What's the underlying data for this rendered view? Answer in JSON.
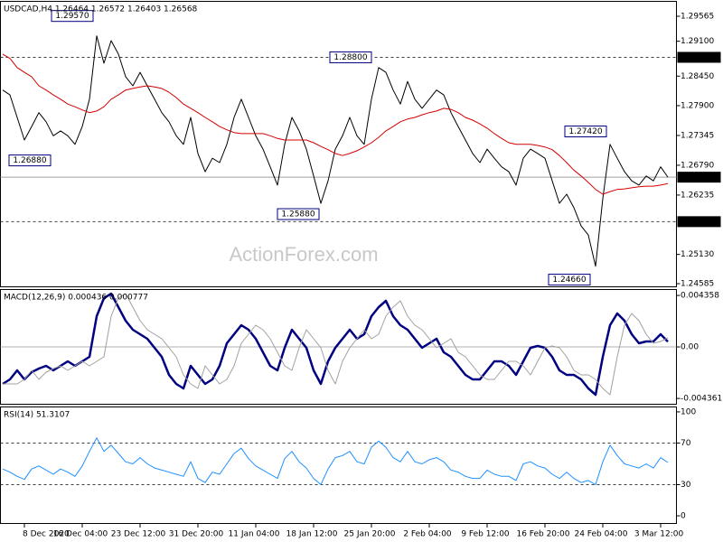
{
  "chart_data": [
    {
      "type": "line",
      "title": "USDCAD,H4 1.26464 1.26572 1.26403 1.26568",
      "watermark": "ActionForex.com",
      "ylim": [
        1.24518,
        1.29834
      ],
      "yticks": [
        1.29565,
        {
          "value": 1.291,
          "label": "1.29100"
        },
        {
          "value": 1.2845,
          "label": "1.28450"
        },
        {
          "value": 1.279,
          "label": "1.27900"
        },
        1.27345,
        {
          "value": 1.2679,
          "label": "1.26790"
        },
        1.26235,
        {
          "value": 1.2513,
          "label": "1.25130"
        },
        1.24585
      ],
      "levels": [
        {
          "value": 1.288,
          "label": "1.28800"
        },
        {
          "value": 1.2574,
          "label": "1.25740"
        }
      ],
      "last_price": 1.26568,
      "annotations": [
        {
          "value": 1.2957,
          "label": "1.29570"
        },
        {
          "value": 1.2742,
          "label": "1.27420"
        },
        {
          "value": 1.2688,
          "label": "1.26880"
        },
        {
          "value": 1.2588,
          "label": "1.25880"
        },
        {
          "value": 1.2466,
          "label": "1.24660"
        }
      ],
      "series": [
        {
          "color": "#000000",
          "values": [
            1.2819,
            1.281,
            1.2768,
            1.2726,
            1.2751,
            1.2777,
            1.276,
            1.2734,
            1.2743,
            1.2734,
            1.2718,
            1.2751,
            1.2802,
            1.292,
            1.2869,
            1.2911,
            1.2886,
            1.2844,
            1.2827,
            1.2852,
            1.2827,
            1.2802,
            1.2777,
            1.276,
            1.2734,
            1.2718,
            1.2768,
            1.2701,
            1.2667,
            1.2692,
            1.2684,
            1.2718,
            1.2768,
            1.2802,
            1.2768,
            1.2734,
            1.2709,
            1.2676,
            1.2642,
            1.2718,
            1.2768,
            1.2743,
            1.2709,
            1.2659,
            1.2608,
            1.265,
            1.2709,
            1.2734,
            1.2768,
            1.2734,
            1.2718,
            1.2802,
            1.2861,
            1.2852,
            1.2819,
            1.2793,
            1.2835,
            1.2802,
            1.2785,
            1.2802,
            1.2819,
            1.281,
            1.2777,
            1.2751,
            1.2726,
            1.2701,
            1.2684,
            1.2709,
            1.2692,
            1.2676,
            1.2667,
            1.2642,
            1.2692,
            1.2709,
            1.2701,
            1.2692,
            1.265,
            1.2608,
            1.2625,
            1.26,
            1.2566,
            1.2549,
            1.2491,
            1.2617,
            1.2718,
            1.2692,
            1.2667,
            1.265,
            1.2642,
            1.2659,
            1.265,
            1.2676,
            1.26568
          ]
        },
        {
          "color": "#d40000",
          "values": [
            1.2886,
            1.2878,
            1.2861,
            1.2852,
            1.2844,
            1.2827,
            1.2819,
            1.281,
            1.2802,
            1.2793,
            1.2788,
            1.2782,
            1.2777,
            1.278,
            1.2788,
            1.2802,
            1.281,
            1.2819,
            1.2822,
            1.2825,
            1.2827,
            1.2825,
            1.2822,
            1.2815,
            1.2805,
            1.2793,
            1.2785,
            1.2777,
            1.2768,
            1.276,
            1.2751,
            1.2745,
            1.274,
            1.2738,
            1.2738,
            1.2738,
            1.2738,
            1.2734,
            1.2729,
            1.2726,
            1.2726,
            1.2726,
            1.2726,
            1.2721,
            1.2714,
            1.2708,
            1.2701,
            1.2697,
            1.2701,
            1.2706,
            1.2713,
            1.2721,
            1.2731,
            1.2743,
            1.2751,
            1.276,
            1.2765,
            1.2768,
            1.2773,
            1.2777,
            1.278,
            1.2785,
            1.2783,
            1.2777,
            1.2768,
            1.2763,
            1.2756,
            1.2748,
            1.2738,
            1.2729,
            1.2721,
            1.2718,
            1.2718,
            1.2718,
            1.2716,
            1.2713,
            1.2708,
            1.2697,
            1.2684,
            1.267,
            1.2659,
            1.2647,
            1.2634,
            1.2625,
            1.263,
            1.2634,
            1.2635,
            1.2637,
            1.2639,
            1.264,
            1.264,
            1.2642,
            1.2645
          ]
        }
      ]
    },
    {
      "type": "line",
      "title": "MACD(12,26,9) 0.000436 0.000777",
      "ylim": [
        -0.00489,
        0.00482
      ],
      "yticks": [
        0.004358,
        {
          "value": 0,
          "label": "0.00"
        },
        -0.004361
      ],
      "levels": [
        0
      ],
      "series": [
        {
          "color": "#000080",
          "values": [
            -0.003134,
            -0.002752,
            -0.001988,
            -0.002752,
            -0.002141,
            -0.001835,
            -0.001605,
            -0.001988,
            -0.001605,
            -0.001223,
            -0.001605,
            -0.001223,
            -0.000841,
            0.002599,
            0.004128,
            0.00451,
            0.003364,
            0.002217,
            0.001453,
            0.00107,
            0.000688,
            -7.6e-05,
            -0.000841,
            -0.00237,
            -0.003134,
            -0.003517,
            -0.001605,
            -0.00237,
            -0.003134,
            -0.002752,
            -0.001605,
            0.000306,
            0.00107,
            0.001835,
            0.001453,
            0.000688,
            -0.000459,
            -0.001605,
            -0.001988,
            -7.6e-05,
            0.001453,
            0.000688,
            -7.6e-05,
            -0.001988,
            -0.003134,
            -0.001223,
            -7.6e-05,
            0.000688,
            0.001453,
            0.000688,
            0.00107,
            0.002599,
            0.003364,
            0.003899,
            0.002599,
            0.001835,
            0.001453,
            0.000688,
            -7.6e-05,
            0.000306,
            0.000688,
            -0.000459,
            -0.000841,
            -0.001605,
            -0.00237,
            -0.002752,
            -0.002752,
            -0.001988,
            -0.001223,
            -0.001223,
            -0.001605,
            -0.00237,
            -0.001223,
            -7.6e-05,
            7.6e-05,
            -7.6e-05,
            -0.000841,
            -0.001988,
            -0.00237,
            -0.00237,
            -0.002752,
            -0.003517,
            -0.004052,
            -0.000841,
            0.001835,
            0.002829,
            0.002217,
            0.00107,
            0.000306,
            0.000459,
            0.000459,
            0.00107,
            0.000436
          ]
        },
        {
          "color": "#a0a0a0",
          "values": [
            -0.003134,
            -0.003134,
            -0.003134,
            -0.002752,
            -0.001988,
            -0.002752,
            -0.002141,
            -0.001835,
            -0.001605,
            -0.001988,
            -0.001605,
            -0.001223,
            -0.001605,
            -0.001223,
            -0.000841,
            0.002599,
            0.004128,
            0.00451,
            0.003364,
            0.002217,
            0.001453,
            0.00107,
            0.000688,
            -7.6e-05,
            -0.000841,
            -0.00237,
            -0.003134,
            -0.003517,
            -0.001605,
            -0.00237,
            -0.003134,
            -0.002752,
            -0.001605,
            0.000306,
            0.00107,
            0.001835,
            0.001453,
            0.000688,
            -0.000459,
            -0.001605,
            -0.001988,
            -7.6e-05,
            0.001453,
            0.000688,
            -7.6e-05,
            -0.001988,
            -0.003134,
            -0.001223,
            -7.6e-05,
            0.000688,
            0.001453,
            0.000688,
            0.00107,
            0.002599,
            0.003364,
            0.003899,
            0.002599,
            0.001835,
            0.001453,
            0.000688,
            -7.6e-05,
            0.000306,
            0.000688,
            -0.000459,
            -0.000841,
            -0.001605,
            -0.00237,
            -0.002752,
            -0.002752,
            -0.001988,
            -0.001223,
            -0.001223,
            -0.001605,
            -0.00237,
            -0.001223,
            -7.6e-05,
            7.6e-05,
            -7.6e-05,
            -0.000841,
            -0.001988,
            -0.00237,
            -0.00237,
            -0.002752,
            -0.003517,
            -0.004052,
            -0.000841,
            0.001835,
            0.002829,
            0.002217,
            0.00107,
            0.000306,
            0.000459,
            0.000777
          ]
        }
      ]
    },
    {
      "type": "line",
      "title": "RSI(14) 51.3107",
      "ylim": [
        -7.8,
        104.3
      ],
      "yticks": [
        100,
        70,
        30,
        0
      ],
      "levels": [
        70,
        30
      ],
      "categories": [
        null,
        null,
        null,
        "8 Dec 2020",
        null,
        null,
        null,
        null,
        null,
        null,
        null,
        "16 Dec 04:00",
        null,
        null,
        null,
        null,
        null,
        null,
        null,
        "23 Dec 12:00",
        null,
        null,
        null,
        null,
        null,
        null,
        null,
        "31 Dec 20:00",
        null,
        null,
        null,
        null,
        null,
        null,
        null,
        "11 Jan 04:00",
        null,
        null,
        null,
        null,
        null,
        null,
        null,
        "18 Jan 12:00",
        null,
        null,
        null,
        null,
        null,
        null,
        null,
        "25 Jan 20:00",
        null,
        null,
        null,
        null,
        null,
        null,
        null,
        "2 Feb 04:00",
        null,
        null,
        null,
        null,
        null,
        null,
        null,
        "9 Feb 12:00",
        null,
        null,
        null,
        null,
        null,
        null,
        null,
        "16 Feb 20:00",
        null,
        null,
        null,
        null,
        null,
        null,
        null,
        "24 Feb 04:00",
        null,
        null,
        null,
        null,
        null,
        null,
        null,
        "3 Mar 12:00",
        null
      ],
      "series": [
        {
          "color": "#1e90ff",
          "values": [
            45,
            42,
            38,
            35,
            45,
            48,
            44,
            40,
            45,
            42,
            38,
            48,
            62,
            75,
            62,
            68,
            60,
            52,
            50,
            56,
            50,
            46,
            44,
            42,
            40,
            38,
            52,
            36,
            32,
            42,
            40,
            50,
            60,
            65,
            55,
            48,
            44,
            40,
            36,
            55,
            62,
            52,
            46,
            36,
            30,
            45,
            56,
            58,
            62,
            52,
            50,
            66,
            72,
            66,
            56,
            52,
            62,
            52,
            50,
            54,
            56,
            52,
            44,
            42,
            38,
            36,
            36,
            44,
            40,
            38,
            38,
            34,
            50,
            52,
            48,
            46,
            40,
            36,
            42,
            36,
            32,
            34,
            30,
            52,
            68,
            58,
            50,
            48,
            46,
            50,
            46,
            56,
            51.3107
          ]
        }
      ]
    }
  ]
}
